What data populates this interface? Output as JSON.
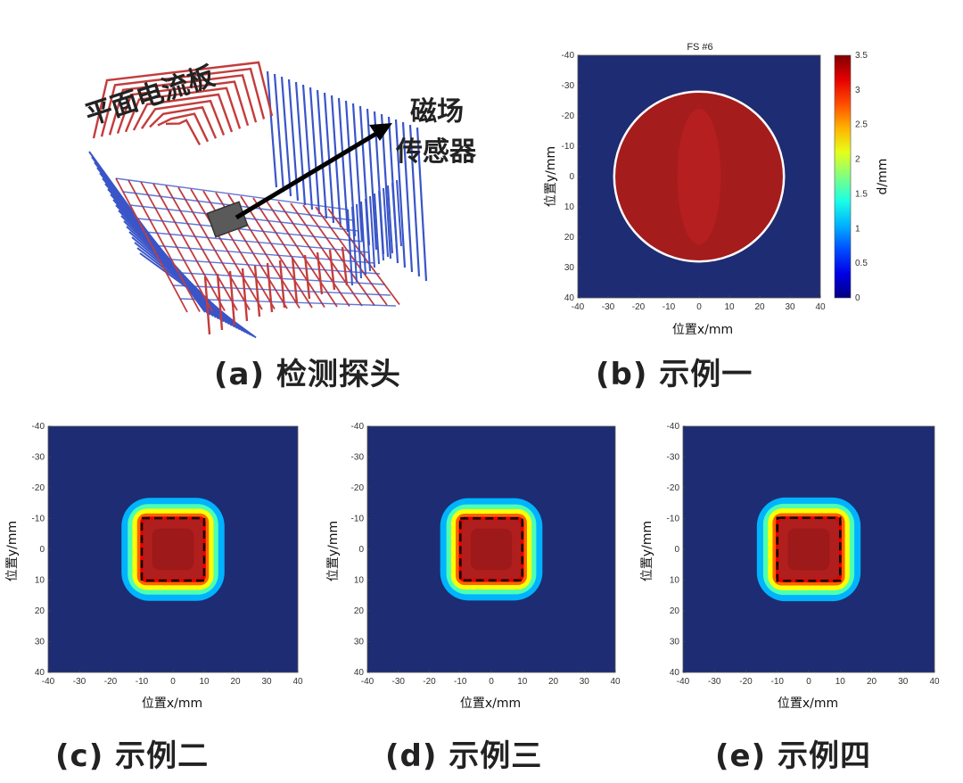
{
  "panels": {
    "a": {
      "caption": "(a) 检测探头",
      "labels": {
        "coil": "平面电流板",
        "sensor_line1": "磁场",
        "sensor_line2": "传感器"
      },
      "colors": {
        "red_coil": "#c43c3c",
        "blue_coil": "#3a55c8",
        "sensor": "#5a5a5a"
      }
    },
    "b": {
      "caption": "(b) 示例一",
      "title": "FS #6",
      "xlabel": "位置x/mm",
      "ylabel": "位置y/mm",
      "colorbar_label": "d/mm"
    },
    "c": {
      "caption": "(c) 示例二",
      "xlabel": "位置x/mm",
      "ylabel": "位置y/mm"
    },
    "d": {
      "caption": "(d) 示例三",
      "xlabel": "位置x/mm",
      "ylabel": "位置y/mm"
    },
    "e": {
      "caption": "(e) 示例四",
      "xlabel": "位置x/mm",
      "ylabel": "位置y/mm"
    }
  },
  "chart_data": [
    {
      "type": "heatmap",
      "title": "FS #6",
      "xlabel": "位置x/mm",
      "ylabel": "位置y/mm",
      "xlim": [
        -40,
        40
      ],
      "ylim": [
        -40,
        40
      ],
      "xticks": [
        -40,
        -30,
        -20,
        -10,
        0,
        10,
        20,
        30,
        40
      ],
      "yticks": [
        -40,
        -30,
        -20,
        -10,
        0,
        10,
        20,
        30,
        40
      ],
      "colorbar": {
        "label": "d/mm",
        "range": [
          0,
          3.5
        ],
        "ticks": [
          0,
          0.5,
          1,
          1.5,
          2,
          2.5,
          3,
          3.5
        ]
      },
      "defect": {
        "shape": "circle",
        "center": [
          0,
          0
        ],
        "radius": 28,
        "depth": 3.3
      }
    },
    {
      "type": "heatmap",
      "xlabel": "位置x/mm",
      "ylabel": "位置y/mm",
      "xlim": [
        -40,
        40
      ],
      "ylim": [
        -40,
        40
      ],
      "xticks": [
        -40,
        -30,
        -20,
        -10,
        0,
        10,
        20,
        30,
        40
      ],
      "yticks": [
        -40,
        -30,
        -20,
        -10,
        0,
        10,
        20,
        30,
        40
      ],
      "defect": {
        "shape": "square",
        "center": [
          0,
          0
        ],
        "half_width": 10,
        "depth": 3.3
      }
    },
    {
      "type": "heatmap",
      "xlabel": "位置x/mm",
      "ylabel": "位置y/mm",
      "xlim": [
        -40,
        40
      ],
      "ylim": [
        -40,
        40
      ],
      "xticks": [
        -40,
        -30,
        -20,
        -10,
        0,
        10,
        20,
        30,
        40
      ],
      "yticks": [
        -40,
        -30,
        -20,
        -10,
        0,
        10,
        20,
        30,
        40
      ],
      "defect": {
        "shape": "square",
        "center": [
          0,
          0
        ],
        "half_width": 10,
        "depth": 3.4
      }
    },
    {
      "type": "heatmap",
      "xlabel": "位置x/mm",
      "ylabel": "位置y/mm",
      "xlim": [
        -40,
        40
      ],
      "ylim": [
        -40,
        40
      ],
      "xticks": [
        -40,
        -30,
        -20,
        -10,
        0,
        10,
        20,
        30,
        40
      ],
      "yticks": [
        -40,
        -30,
        -20,
        -10,
        0,
        10,
        20,
        30,
        40
      ],
      "defect": {
        "shape": "square",
        "center": [
          0,
          0
        ],
        "half_width": 10,
        "depth": 3.3
      }
    }
  ]
}
